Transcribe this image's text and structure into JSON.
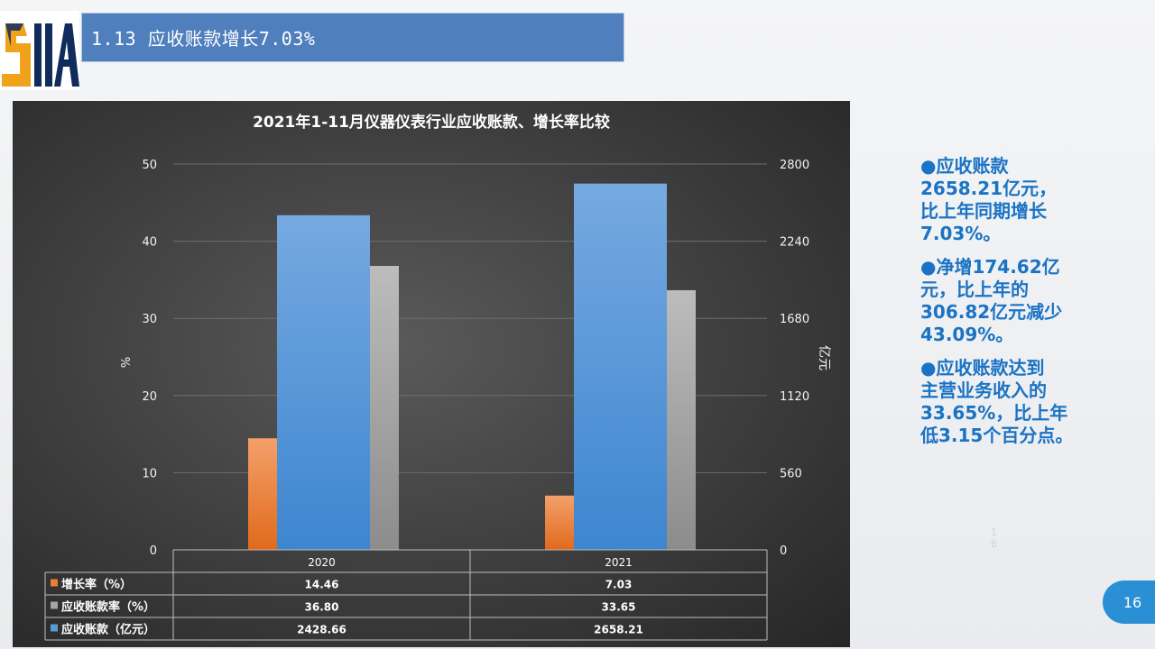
{
  "logo": {
    "text": "SIIA"
  },
  "header": {
    "title": "1.13 应收账款增长7.03%"
  },
  "chart_data": {
    "type": "bar",
    "title": "2021年1-11月仪器仪表行业应收账款、增长率比较",
    "categories": [
      "2020",
      "2021"
    ],
    "left_axis": {
      "label": "%",
      "ylim": [
        0,
        50
      ],
      "ticks": [
        "0",
        "10",
        "20",
        "30",
        "40",
        "50"
      ]
    },
    "right_axis": {
      "label": "亿元",
      "ylim": [
        0,
        2800
      ],
      "ticks": [
        "0",
        "560",
        "1120",
        "1680",
        "2240",
        "2800"
      ]
    },
    "series": [
      {
        "name": "增长率（%）",
        "values": [
          14.46,
          7.03
        ],
        "axis": "left",
        "color": "#ed7d31"
      },
      {
        "name": "应收账款（亿元）",
        "values": [
          2428.66,
          2658.21
        ],
        "axis": "right",
        "color": "#5b9bd5"
      },
      {
        "name": "应收账款率（%）",
        "values": [
          36.8,
          33.65
        ],
        "axis": "left",
        "color": "#a5a5a5"
      }
    ],
    "table": {
      "rows": [
        {
          "label": "增长率（%）",
          "color": "#ed7d31",
          "values": [
            "14.46",
            "7.03"
          ]
        },
        {
          "label": "应收账款率（%）",
          "color": "#a5a5a5",
          "values": [
            "36.80",
            "33.65"
          ]
        },
        {
          "label": "应收账款（亿元）",
          "color": "#5b9bd5",
          "values": [
            "2428.66",
            "2658.21"
          ]
        }
      ]
    },
    "grid": true
  },
  "notes": [
    {
      "bullet": "●",
      "text": "应收账款\n2658.21亿元，\n比上年同期增长\n7.03%。"
    },
    {
      "bullet": "●",
      "text": "净增174.62亿\n元，比上年的\n306.82亿元减少\n43.09%。"
    },
    {
      "bullet": "●",
      "text": "应收账款达到\n主营业务收入的\n33.65%，比上年\n低3.15个百分点。"
    }
  ],
  "faint_mark": "1\n6",
  "page_number": "16"
}
